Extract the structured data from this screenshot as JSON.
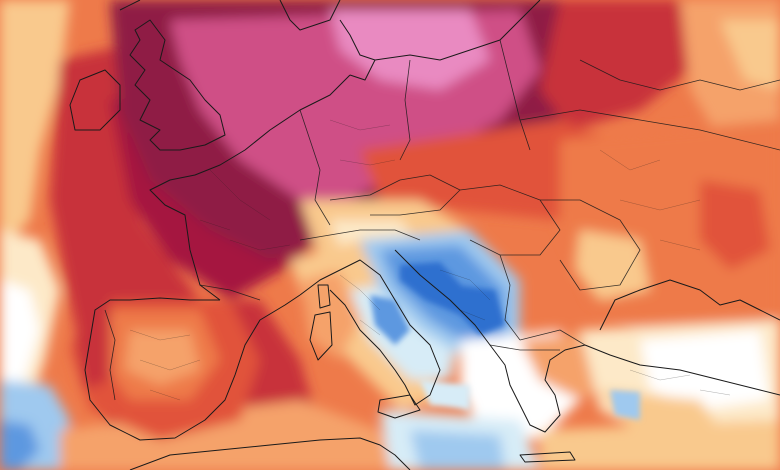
{
  "map": {
    "kind": "temperature anomaly forecast map",
    "region": "Europe",
    "labels_visible": false,
    "palette": {
      "deep_cold": "#2f6fcf",
      "cold": "#5d98e0",
      "cool": "#9fc9ef",
      "cool_pale": "#d7ecf7",
      "neutral": "#ffffff",
      "warm_faint": "#fde9c8",
      "warm_light": "#f9c98d",
      "warm": "#f5a26a",
      "warm_strong": "#ee7a4a",
      "hot": "#e1523a",
      "hot_deep": "#c8303a",
      "very_hot": "#a5193f",
      "extreme": "#8f1a45",
      "extreme_plus": "#cf4f86",
      "extreme_max": "#e98ac1",
      "border_lines": "#1a1a1a"
    },
    "features": [
      "extreme-heat-core-british-isles-france-germany",
      "heat-core-iberia-bay-of-biscay",
      "cold-anomaly-adriatic-balkans",
      "cool-anomaly-mediterranean",
      "warm-anomaly-eastern-europe"
    ]
  }
}
